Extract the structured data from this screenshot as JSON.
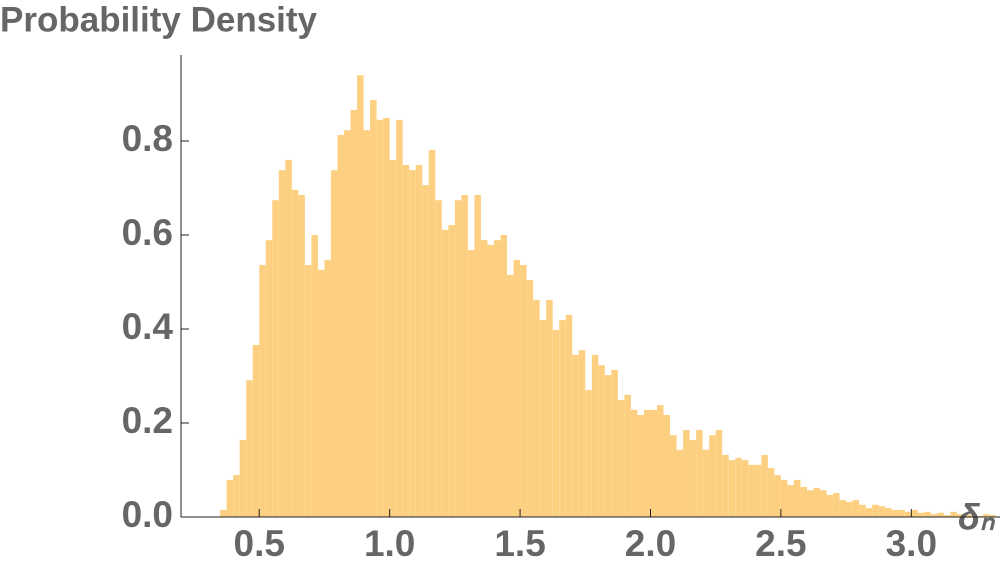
{
  "chart_data": {
    "type": "histogram",
    "ylabel": "Probability Density",
    "xlabel": "δₙ",
    "color": "#fdd081",
    "bins": [
      0.35,
      0.375,
      0.4,
      0.425,
      0.45,
      0.475,
      0.5,
      0.525,
      0.55,
      0.575,
      0.6,
      0.625,
      0.65,
      0.675,
      0.7,
      0.725,
      0.75,
      0.775,
      0.8,
      0.825,
      0.85,
      0.875,
      0.9,
      0.925,
      0.95,
      0.975,
      1.0,
      1.025,
      1.05,
      1.075,
      1.1,
      1.125,
      1.15,
      1.175,
      1.2,
      1.225,
      1.25,
      1.275,
      1.3,
      1.325,
      1.35,
      1.375,
      1.4,
      1.425,
      1.45,
      1.475,
      1.5,
      1.525,
      1.55,
      1.575,
      1.6,
      1.625,
      1.65,
      1.675,
      1.7,
      1.725,
      1.75,
      1.775,
      1.8,
      1.825,
      1.85,
      1.875,
      1.9,
      1.925,
      1.95,
      1.975,
      2.0,
      2.025,
      2.05,
      2.075,
      2.1,
      2.125,
      2.15,
      2.175,
      2.2,
      2.225,
      2.25,
      2.275,
      2.3,
      2.325,
      2.35,
      2.375,
      2.4,
      2.425,
      2.45,
      2.475,
      2.5,
      2.525,
      2.55,
      2.575,
      2.6,
      2.625,
      2.65,
      2.675,
      2.7,
      2.725,
      2.75,
      2.775,
      2.8,
      2.825,
      2.85,
      2.875,
      2.9,
      2.925,
      2.95,
      2.975,
      3.0,
      3.025,
      3.05,
      3.075,
      3.1,
      3.125,
      3.15,
      3.175,
      3.2,
      3.225,
      3.25,
      3.275,
      3.3,
      3.325
    ],
    "values": [
      0.015,
      0.079,
      0.089,
      0.164,
      0.291,
      0.366,
      0.536,
      0.589,
      0.674,
      0.738,
      0.76,
      0.696,
      0.685,
      0.536,
      0.6,
      0.526,
      0.547,
      0.738,
      0.813,
      0.823,
      0.866,
      0.94,
      0.823,
      0.887,
      0.845,
      0.849,
      0.76,
      0.845,
      0.749,
      0.738,
      0.749,
      0.706,
      0.781,
      0.674,
      0.611,
      0.621,
      0.674,
      0.685,
      0.568,
      0.685,
      0.589,
      0.579,
      0.589,
      0.6,
      0.515,
      0.547,
      0.536,
      0.504,
      0.462,
      0.419,
      0.462,
      0.398,
      0.419,
      0.43,
      0.345,
      0.355,
      0.27,
      0.345,
      0.323,
      0.302,
      0.313,
      0.249,
      0.26,
      0.228,
      0.217,
      0.228,
      0.228,
      0.238,
      0.217,
      0.174,
      0.143,
      0.185,
      0.164,
      0.185,
      0.143,
      0.174,
      0.185,
      0.132,
      0.121,
      0.126,
      0.121,
      0.111,
      0.111,
      0.132,
      0.104,
      0.089,
      0.079,
      0.068,
      0.079,
      0.064,
      0.057,
      0.062,
      0.057,
      0.047,
      0.051,
      0.036,
      0.032,
      0.036,
      0.026,
      0.019,
      0.026,
      0.023,
      0.019,
      0.015,
      0.015,
      0.011,
      0.015,
      0.009,
      0.011,
      0.006,
      0.009,
      0.004,
      0.011,
      0.006,
      0.004,
      0.006,
      0.002,
      0.006,
      0.004
    ],
    "xlim": [
      0.2,
      3.34
    ],
    "ylim": [
      0,
      0.983
    ],
    "xticks": [
      0.5,
      {
        "value": 1,
        "label": "1.0"
      },
      1.5,
      {
        "value": 2,
        "label": "2.0"
      },
      2.5,
      {
        "value": 3,
        "label": "3.0"
      }
    ],
    "yticks": [
      {
        "value": 0,
        "label": "0.0"
      },
      0.2,
      0.4,
      0.6,
      0.8
    ]
  }
}
